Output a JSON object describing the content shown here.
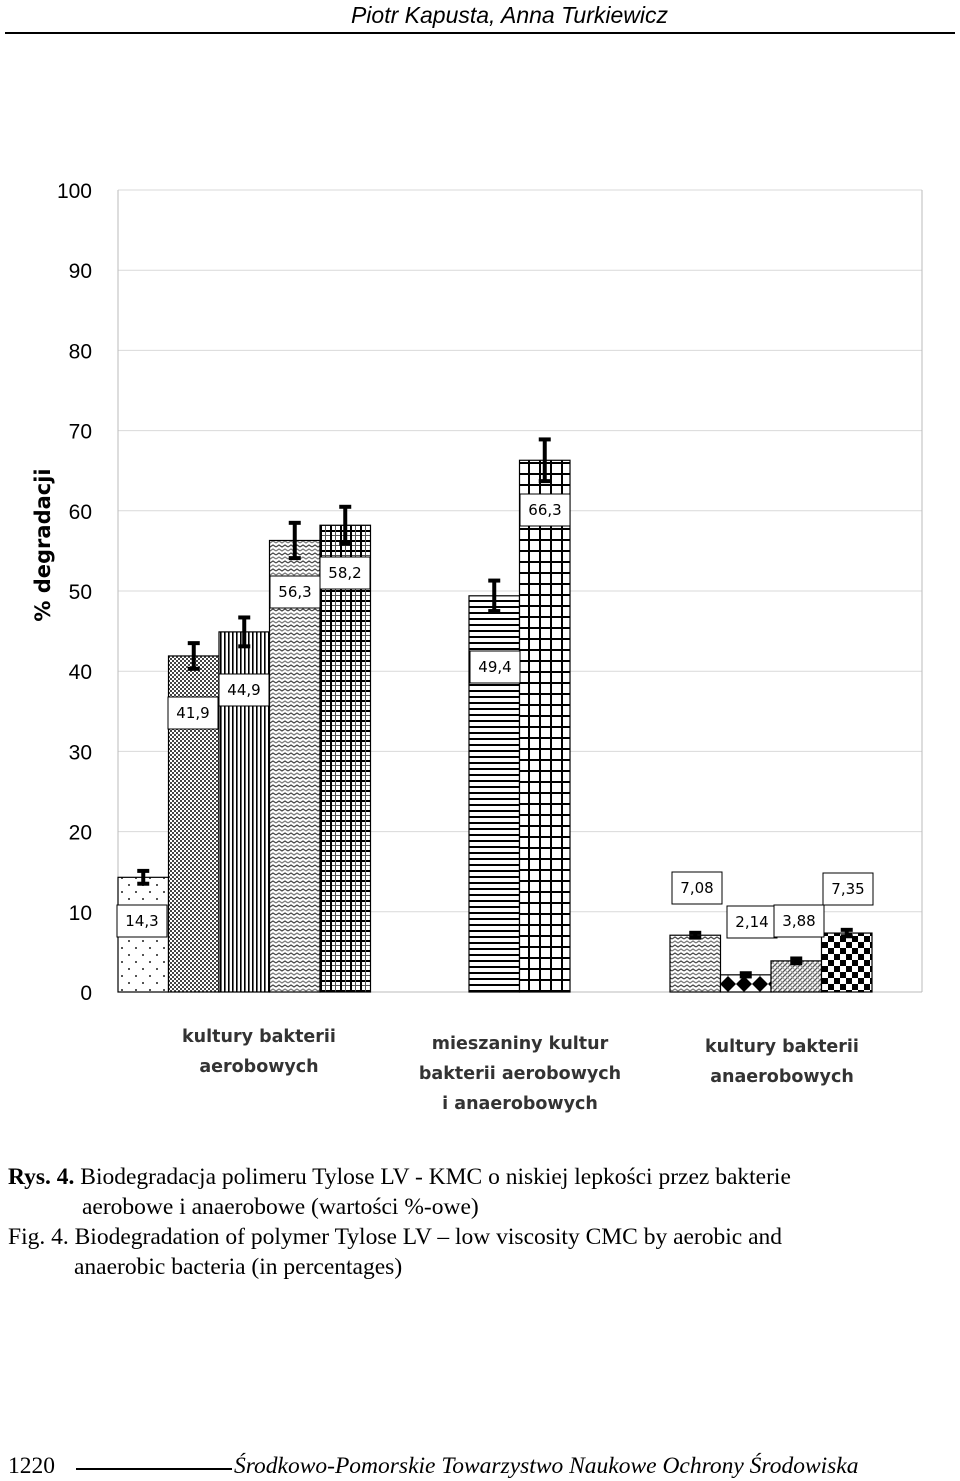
{
  "header": {
    "authors": "Piotr Kapusta, Anna Turkiewicz"
  },
  "chart_data": {
    "type": "bar",
    "ylabel": "% degradacji",
    "ylim": [
      0,
      100
    ],
    "yticks": [
      "0",
      "10",
      "20",
      "30",
      "40",
      "50",
      "60",
      "70",
      "80",
      "90",
      "100"
    ],
    "grid": true,
    "groups": [
      {
        "label_lines": [
          "kultury bakterii",
          "aerobowych"
        ],
        "bars": [
          {
            "value": 14.3,
            "label": "14,3",
            "error": 0.8,
            "pattern": "dots"
          },
          {
            "value": 41.9,
            "label": "41,9",
            "error": 1.6,
            "pattern": "checker"
          },
          {
            "value": 44.9,
            "label": "44,9",
            "error": 1.8,
            "pattern": "vlines"
          },
          {
            "value": 56.3,
            "label": "56,3",
            "error": 2.2,
            "pattern": "wave"
          },
          {
            "value": 58.2,
            "label": "58,2",
            "error": 2.3,
            "pattern": "plaid"
          }
        ]
      },
      {
        "label_lines": [
          "mieszaniny kultur",
          "bakterii aerobowych",
          "i anaerobowych"
        ],
        "bars": [
          {
            "value": 49.4,
            "label": "49,4",
            "error": 1.9,
            "pattern": "hlines"
          },
          {
            "value": 66.3,
            "label": "66,3",
            "error": 2.6,
            "pattern": "grid"
          }
        ]
      },
      {
        "label_lines": [
          "kultury bakterii",
          "anaerobowych"
        ],
        "bars": [
          {
            "value": 7.08,
            "label": "7,08",
            "error": 0.3,
            "pattern": "wave"
          },
          {
            "value": 2.14,
            "label": "2,14",
            "error": 0.2,
            "pattern": "diamond"
          },
          {
            "value": 3.88,
            "label": "3,88",
            "error": 0.3,
            "pattern": "diag"
          },
          {
            "value": 7.35,
            "label": "7,35",
            "error": 0.4,
            "pattern": "bigcheck"
          }
        ]
      }
    ]
  },
  "caption": {
    "pl_lead": "Rys. 4.",
    "pl_text_1": " Biodegradacja polimeru Tylose LV - KMC o niskiej lepkości przez bakterie",
    "pl_text_2": "aerobowe i anaerobowe (wartości %-owe)",
    "en_lead": "Fig. 4.",
    "en_text_1": " Biodegradation of polymer Tylose LV – low viscosity CMC by aerobic and",
    "en_text_2": "anaerobic bacteria (in percentages)"
  },
  "footer": {
    "page_number": "1220",
    "journal": "Środkowo-Pomorskie Towarzystwo Naukowe Ochrony Środowiska"
  }
}
